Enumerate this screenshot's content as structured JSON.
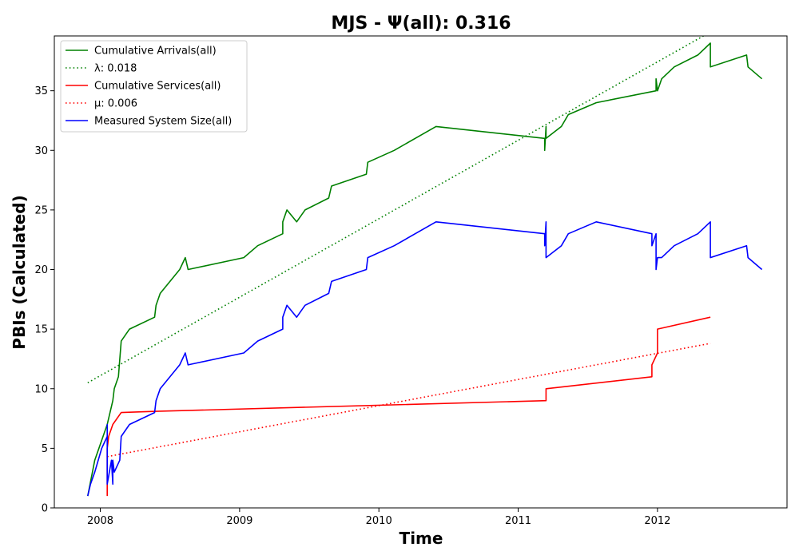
{
  "chart_data": {
    "type": "line",
    "title": "MJS -  Ψ(all): 0.316",
    "xlabel": "Time",
    "ylabel": "PBIs (Calculated)",
    "xlim": [
      2007.67,
      2012.93
    ],
    "ylim": [
      0,
      39.6
    ],
    "xticks": [
      2008,
      2009,
      2010,
      2011,
      2012
    ],
    "xtick_labels": [
      "2008",
      "2009",
      "2010",
      "2011",
      "2012"
    ],
    "yticks": [
      0,
      5,
      10,
      15,
      20,
      25,
      30,
      35
    ],
    "ytick_labels": [
      "0",
      "5",
      "10",
      "15",
      "20",
      "25",
      "30",
      "35"
    ],
    "grid": false,
    "legend_position": "upper-left",
    "series": [
      {
        "name": "Cumulative Arrivals(all)",
        "legend_label": "Cumulative Arrivals(all)",
        "color": "#008000",
        "style": "solid",
        "x": [
          2007.91,
          2007.96,
          2008.05,
          2008.07,
          2008.09,
          2008.1,
          2008.13,
          2008.15,
          2008.21,
          2008.39,
          2008.4,
          2008.43,
          2008.57,
          2008.61,
          2008.63,
          2009.03,
          2009.13,
          2009.31,
          2009.31,
          2009.34,
          2009.41,
          2009.47,
          2009.64,
          2009.66,
          2009.91,
          2009.92,
          2010.11,
          2010.41,
          2011.19,
          2011.19,
          2011.2,
          2011.2,
          2011.31,
          2011.36,
          2011.56,
          2011.99,
          2011.99,
          2012.0,
          2012.03,
          2012.12,
          2012.29,
          2012.38,
          2012.38,
          2012.64,
          2012.65,
          2012.75
        ],
        "y": [
          1,
          4,
          7,
          8,
          9,
          10,
          11,
          14,
          15,
          16,
          17,
          18,
          20,
          21,
          20,
          21,
          22,
          23,
          24,
          25,
          24,
          25,
          26,
          27,
          28,
          29,
          30,
          32,
          31,
          30,
          32,
          31,
          32,
          33,
          34,
          35,
          36,
          35,
          36,
          37,
          38,
          39,
          37,
          38,
          37,
          36
        ]
      },
      {
        "name": "λ: 0.018",
        "legend_label": "λ: 0.018",
        "color": "#008000",
        "style": "dotted",
        "x": [
          2007.91,
          2012.33
        ],
        "y": [
          10.5,
          39.6
        ]
      },
      {
        "name": "Cumulative Services(all)",
        "legend_label": "Cumulative Services(all)",
        "color": "#ff0000",
        "style": "solid",
        "x": [
          2008.05,
          2008.05,
          2008.06,
          2008.09,
          2008.15,
          2008.4,
          2011.2,
          2011.2,
          2011.96,
          2011.96,
          2012.0,
          2012.0,
          2012.38
        ],
        "y": [
          1,
          5,
          6,
          7,
          8,
          8.1,
          9,
          10,
          11,
          12,
          13,
          15,
          16
        ]
      },
      {
        "name": "μ: 0.006",
        "legend_label": "μ: 0.006",
        "color": "#ff0000",
        "style": "dotted",
        "x": [
          2008.05,
          2012.38
        ],
        "y": [
          4.3,
          13.8
        ]
      },
      {
        "name": "Measured System Size(all)",
        "legend_label": "Measured System Size(all)",
        "color": "#0000ff",
        "style": "solid",
        "x": [
          2007.91,
          2007.93,
          2007.96,
          2008.01,
          2008.05,
          2008.05,
          2008.05,
          2008.08,
          2008.09,
          2008.09,
          2008.1,
          2008.14,
          2008.15,
          2008.21,
          2008.39,
          2008.4,
          2008.43,
          2008.57,
          2008.61,
          2008.63,
          2009.03,
          2009.13,
          2009.31,
          2009.31,
          2009.34,
          2009.41,
          2009.47,
          2009.64,
          2009.66,
          2009.91,
          2009.92,
          2010.11,
          2010.41,
          2011.19,
          2011.19,
          2011.2,
          2011.2,
          2011.31,
          2011.36,
          2011.56,
          2011.96,
          2011.96,
          2011.99,
          2011.99,
          2012.0,
          2012.03,
          2012.12,
          2012.29,
          2012.38,
          2012.38,
          2012.64,
          2012.65,
          2012.75
        ],
        "y": [
          1,
          2,
          3,
          5,
          6,
          7,
          2,
          4,
          2,
          4,
          3,
          4,
          6,
          7,
          8,
          9,
          10,
          12,
          13,
          12,
          13,
          14,
          15,
          16,
          17,
          16,
          17,
          18,
          19,
          20,
          21,
          22,
          24,
          23,
          22,
          24,
          21,
          22,
          23,
          24,
          23,
          22,
          23,
          20,
          21,
          21,
          22,
          23,
          24,
          21,
          22,
          21,
          20
        ]
      }
    ]
  }
}
